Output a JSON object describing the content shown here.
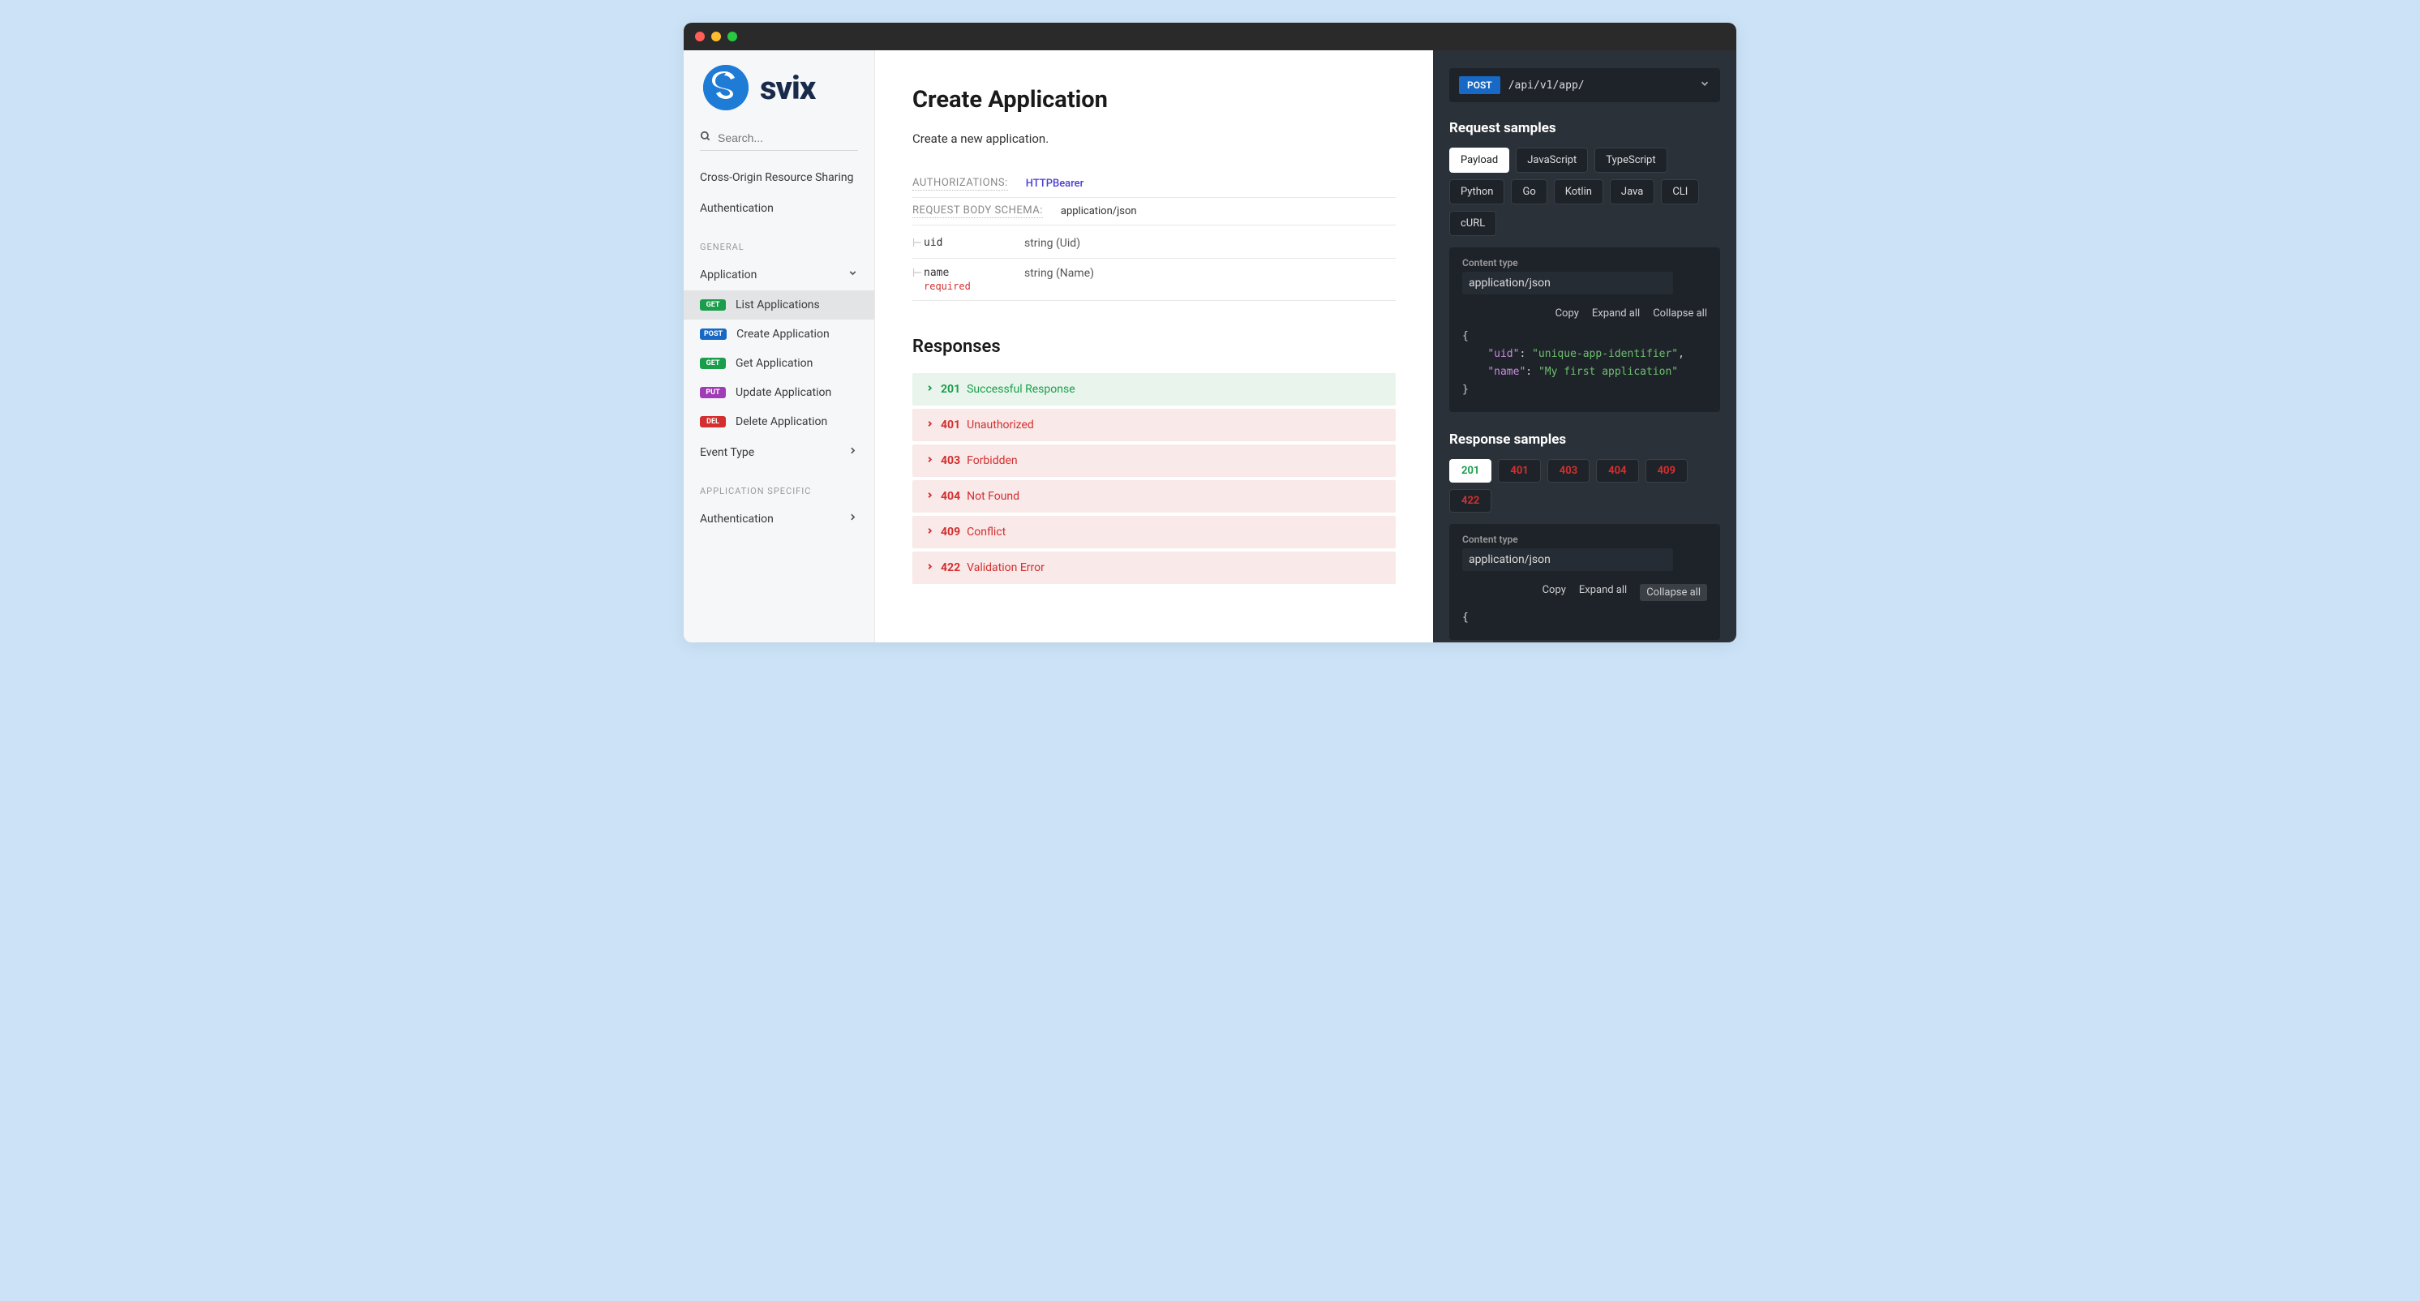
{
  "brand": {
    "name": "svix"
  },
  "search": {
    "placeholder": "Search..."
  },
  "sidebar": {
    "top_links": [
      {
        "label": "Cross-Origin Resource Sharing"
      },
      {
        "label": "Authentication"
      }
    ],
    "sections": [
      {
        "heading": "GENERAL",
        "groups": [
          {
            "label": "Application",
            "expanded": true,
            "items": [
              {
                "method": "GET",
                "method_class": "m-get",
                "label": "List Applications",
                "active": true
              },
              {
                "method": "POST",
                "method_class": "m-post",
                "label": "Create Application"
              },
              {
                "method": "GET",
                "method_class": "m-get",
                "label": "Get Application"
              },
              {
                "method": "PUT",
                "method_class": "m-put",
                "label": "Update Application"
              },
              {
                "method": "DEL",
                "method_class": "m-del",
                "label": "Delete Application"
              }
            ]
          },
          {
            "label": "Event Type",
            "expanded": false
          }
        ]
      },
      {
        "heading": "APPLICATION SPECIFIC",
        "groups": [
          {
            "label": "Authentication",
            "expanded": false
          }
        ]
      }
    ]
  },
  "main": {
    "title": "Create Application",
    "description": "Create a new application.",
    "auth_label": "AUTHORIZATIONS:",
    "auth_value": "HTTPBearer",
    "body_schema_label": "REQUEST BODY SCHEMA:",
    "body_schema_value": "application/json",
    "params": [
      {
        "name": "uid",
        "type": "string (Uid)",
        "required": false,
        "tree": "┌"
      },
      {
        "name": "name",
        "type": "string (Name)",
        "required": true,
        "tree": "└"
      }
    ],
    "required_label": "required",
    "responses_heading": "Responses",
    "responses": [
      {
        "code": "201",
        "text": "Successful Response",
        "kind": "success"
      },
      {
        "code": "401",
        "text": "Unauthorized",
        "kind": "error"
      },
      {
        "code": "403",
        "text": "Forbidden",
        "kind": "error"
      },
      {
        "code": "404",
        "text": "Not Found",
        "kind": "error"
      },
      {
        "code": "409",
        "text": "Conflict",
        "kind": "error"
      },
      {
        "code": "422",
        "text": "Validation Error",
        "kind": "error"
      }
    ]
  },
  "right": {
    "endpoint": {
      "method": "POST",
      "path": "/api/v1/app/"
    },
    "request_heading": "Request samples",
    "request_tabs": [
      "Payload",
      "JavaScript",
      "TypeScript",
      "Python",
      "Go",
      "Kotlin",
      "Java",
      "CLI",
      "cURL"
    ],
    "request_tab_active": "Payload",
    "content_type_label": "Content type",
    "content_type_value": "application/json",
    "tools": {
      "copy": "Copy",
      "expand": "Expand all",
      "collapse": "Collapse all"
    },
    "payload_json": {
      "uid": "unique-app-identifier",
      "name": "My first application"
    },
    "response_heading": "Response samples",
    "response_tabs": [
      {
        "code": "201",
        "kind": "ok",
        "active": true
      },
      {
        "code": "401",
        "kind": "err"
      },
      {
        "code": "403",
        "kind": "err"
      },
      {
        "code": "404",
        "kind": "err"
      },
      {
        "code": "409",
        "kind": "err"
      },
      {
        "code": "422",
        "kind": "err"
      }
    ]
  }
}
